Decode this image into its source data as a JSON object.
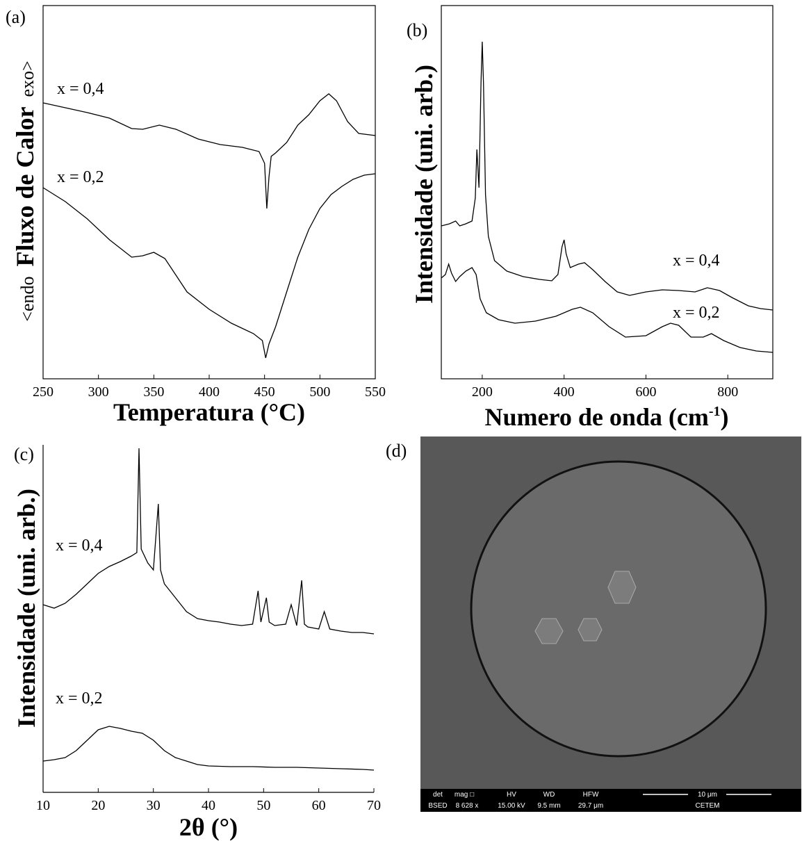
{
  "chart_data": [
    {
      "type": "line",
      "panel_label": "(a)",
      "x_label": "Temperatura (°C)",
      "y_label": {
        "left": "<endo",
        "main": "Fluxo de Calor",
        "right": "exo>"
      },
      "xlim": [
        250,
        550
      ],
      "xticks": [
        250,
        300,
        350,
        400,
        450,
        500,
        550
      ],
      "ylim": [
        0,
        107.4
      ],
      "series": [
        {
          "name": "x = 0,4",
          "color": "#000000",
          "x": [
            250,
            270,
            290,
            310,
            330,
            340,
            355,
            370,
            390,
            410,
            430,
            445,
            450,
            452,
            454,
            456,
            460,
            470,
            480,
            490,
            500,
            508,
            515,
            525,
            535,
            550
          ],
          "values": [
            79.4,
            78,
            76.6,
            75,
            72,
            71.8,
            73,
            71.8,
            69,
            67.4,
            66.6,
            65.4,
            62,
            49,
            58,
            64,
            65,
            68,
            73,
            76,
            80,
            82,
            80,
            74,
            70.6,
            70
          ]
        },
        {
          "name": "x = 0,2",
          "color": "#000000",
          "x": [
            250,
            270,
            290,
            310,
            330,
            340,
            350,
            360,
            380,
            400,
            420,
            440,
            448,
            451,
            454,
            460,
            470,
            480,
            490,
            500,
            510,
            520,
            530,
            540,
            550
          ],
          "values": [
            55,
            51,
            46,
            40,
            35,
            35.4,
            36.4,
            34.6,
            25,
            20,
            16,
            13,
            11,
            6,
            10,
            15,
            25,
            35,
            43,
            49,
            53,
            55.4,
            57.4,
            58.6,
            59
          ]
        }
      ]
    },
    {
      "type": "line",
      "panel_label": "(b)",
      "x_label": {
        "main": "Numero de onda (cm",
        "sup": "-1",
        "end": ")"
      },
      "y_label": "Intensidade (uni. arb.)",
      "xlim": [
        100,
        910
      ],
      "xticks": [
        200,
        400,
        600,
        800
      ],
      "ylim": [
        0,
        107.4
      ],
      "series": [
        {
          "name": "x = 0,4",
          "color": "#000000",
          "x": [
            100,
            120,
            135,
            145,
            160,
            175,
            183,
            187,
            192,
            197,
            200,
            203,
            208,
            215,
            230,
            260,
            300,
            340,
            370,
            385,
            395,
            400,
            405,
            415,
            435,
            450,
            470,
            500,
            530,
            560,
            600,
            640,
            680,
            720,
            750,
            780,
            810,
            850,
            880,
            910
          ],
          "values": [
            44,
            44.6,
            45.4,
            44,
            44.6,
            45.4,
            52,
            66,
            55,
            85,
            97,
            85,
            53,
            41,
            34,
            31,
            29.4,
            28.6,
            28.2,
            30,
            38,
            40,
            36,
            32,
            33,
            33.4,
            31.4,
            28,
            25,
            24,
            25,
            25.6,
            25.4,
            25,
            26.2,
            25.4,
            23.4,
            21,
            20.2,
            19.8
          ]
        },
        {
          "name": "x = 0,2",
          "color": "#000000",
          "x": [
            100,
            110,
            118,
            125,
            135,
            145,
            160,
            175,
            185,
            195,
            210,
            240,
            280,
            330,
            380,
            420,
            440,
            470,
            510,
            550,
            600,
            640,
            660,
            680,
            710,
            740,
            760,
            790,
            830,
            870,
            910
          ],
          "values": [
            29,
            30,
            33,
            30.4,
            28,
            29.4,
            31,
            32,
            30,
            23,
            19,
            17,
            16,
            16.6,
            18,
            20,
            20.6,
            19,
            15,
            12,
            12.4,
            15,
            16,
            15.4,
            12,
            12,
            13,
            11,
            9,
            8,
            7.6
          ]
        }
      ]
    },
    {
      "type": "line",
      "panel_label": "(c)",
      "x_label": "2θ (°)",
      "y_label": "Intensidade (uni. arb.)",
      "xlim": [
        10,
        70
      ],
      "xticks": [
        10,
        20,
        30,
        40,
        50,
        60,
        70
      ],
      "ylim": [
        0,
        100
      ],
      "series": [
        {
          "name": "x = 0,4",
          "color": "#000000",
          "x": [
            10,
            12,
            14,
            16,
            18,
            20,
            22,
            24,
            26,
            27,
            27.4,
            27.8,
            29,
            30,
            30.9,
            31.3,
            32,
            34,
            36,
            38,
            40,
            42,
            44,
            46,
            48,
            49,
            49.5,
            50.5,
            51,
            52,
            54,
            55,
            56,
            56.9,
            57.4,
            58,
            60,
            61,
            62,
            64,
            66,
            68,
            70
          ],
          "values": [
            54,
            53,
            54.4,
            57,
            60,
            63,
            65,
            66.4,
            68,
            69,
            99,
            70,
            66,
            64,
            83,
            64,
            60,
            56,
            52,
            50,
            49.4,
            49,
            48.4,
            48,
            48.4,
            58,
            49,
            56,
            49,
            48,
            48.4,
            54,
            48,
            61,
            48.4,
            47.6,
            47,
            52,
            47,
            46.4,
            46,
            46,
            45.6
          ]
        },
        {
          "name": "x = 0,2",
          "color": "#000000",
          "x": [
            10,
            12,
            14,
            16,
            18,
            20,
            22,
            24,
            26,
            28,
            30,
            32,
            34,
            36,
            38,
            40,
            44,
            48,
            52,
            56,
            60,
            64,
            68,
            70
          ],
          "values": [
            9,
            9.4,
            10,
            12,
            15,
            18,
            19,
            18.4,
            17.6,
            17,
            15,
            12,
            10,
            9,
            8,
            7.6,
            7.4,
            7.4,
            7.2,
            7.2,
            7,
            6.8,
            6.6,
            6.4
          ]
        }
      ]
    }
  ],
  "image": {
    "panel_label": "(d)",
    "info_bar": {
      "det": "det",
      "mag": "mag □",
      "hv": "HV",
      "wd": "WD",
      "hfw": "HFW",
      "scale": "10 μm",
      "det_value": "BSED",
      "mag_value": "8 628 x",
      "hv_value": "15.00 kV",
      "wd_value": "9.5 mm",
      "hfw_value": "29.7 μm",
      "org": "CETEM"
    }
  }
}
